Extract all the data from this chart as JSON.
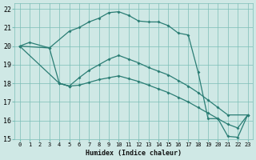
{
  "xlabel": "Humidex (Indice chaleur)",
  "bg_color": "#cfe8e5",
  "grid_color": "#7bbdb6",
  "line_color": "#2a7d74",
  "xlim": [
    -0.5,
    23.5
  ],
  "ylim": [
    15,
    22.3
  ],
  "xticks": [
    0,
    1,
    2,
    3,
    4,
    5,
    6,
    7,
    8,
    9,
    10,
    11,
    12,
    13,
    14,
    15,
    16,
    17,
    18,
    19,
    20,
    21,
    22,
    23
  ],
  "yticks": [
    15,
    16,
    17,
    18,
    19,
    20,
    21,
    22
  ],
  "curve1_x": [
    0,
    1,
    3,
    5,
    6,
    7,
    8,
    9,
    10,
    11,
    12,
    13,
    14,
    15,
    16,
    17,
    18,
    19,
    20,
    21,
    22,
    23
  ],
  "curve1_y": [
    20.0,
    20.2,
    19.9,
    20.8,
    21.0,
    21.3,
    21.5,
    21.8,
    21.85,
    21.65,
    21.35,
    21.3,
    21.3,
    21.1,
    20.7,
    20.6,
    18.6,
    16.1,
    16.1,
    15.15,
    15.1,
    16.3
  ],
  "curve2_x": [
    0,
    3,
    4,
    5
  ],
  "curve2_y": [
    20.0,
    19.9,
    18.0,
    17.85
  ],
  "curve3_x": [
    0,
    4,
    5,
    6,
    7,
    8,
    9,
    10,
    11,
    12,
    13,
    14,
    15,
    16,
    17,
    18,
    19,
    20,
    21,
    23
  ],
  "curve3_y": [
    20.0,
    18.0,
    17.85,
    18.3,
    18.7,
    19.0,
    19.3,
    19.5,
    19.3,
    19.1,
    18.85,
    18.65,
    18.45,
    18.15,
    17.85,
    17.5,
    17.1,
    16.7,
    16.3,
    16.3
  ],
  "curve4_x": [
    4,
    5,
    6,
    7,
    8,
    9,
    10,
    11,
    12,
    13,
    14,
    15,
    16,
    17,
    18,
    19,
    20,
    21,
    22,
    23
  ],
  "curve4_y": [
    18.0,
    17.85,
    17.9,
    18.05,
    18.2,
    18.3,
    18.4,
    18.25,
    18.1,
    17.9,
    17.7,
    17.5,
    17.25,
    17.0,
    16.7,
    16.4,
    16.1,
    15.8,
    15.6,
    16.3
  ]
}
